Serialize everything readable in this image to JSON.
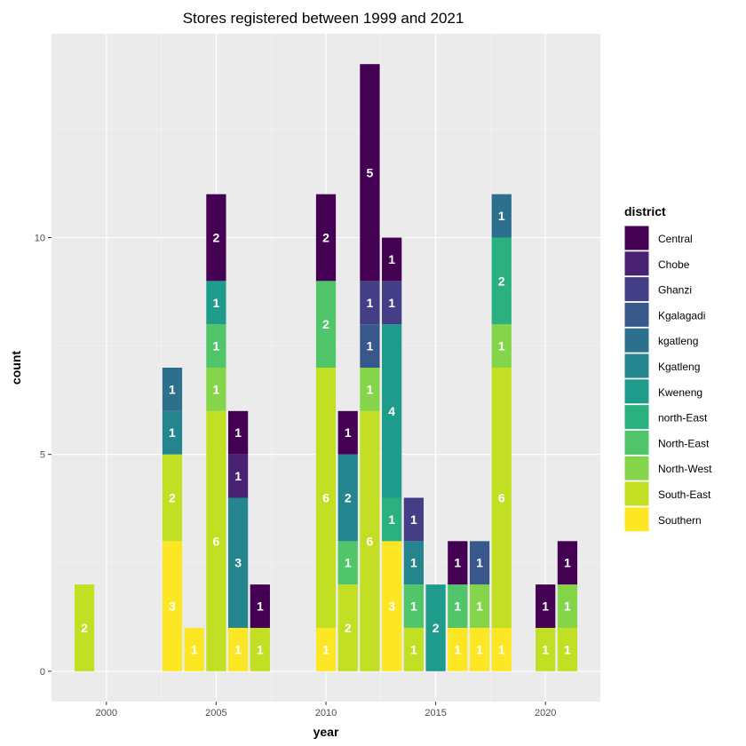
{
  "chart_data": {
    "type": "bar",
    "stacked": true,
    "title": "Stores registered between 1999 and 2021",
    "xlabel": "year",
    "ylabel": "count",
    "xlim": [
      1997.5,
      2022.5
    ],
    "ylim": [
      -0.7,
      14.7
    ],
    "x_ticks": [
      2000,
      2005,
      2010,
      2015,
      2020
    ],
    "y_ticks": [
      0,
      5,
      10
    ],
    "grid": true,
    "legend": {
      "title": "district",
      "position": "right",
      "entries": [
        {
          "name": "Central",
          "color": "#440154"
        },
        {
          "name": "Chobe",
          "color": "#482173"
        },
        {
          "name": "Ghanzi",
          "color": "#433E85"
        },
        {
          "name": "Kgalagadi",
          "color": "#38588C"
        },
        {
          "name": "kgatleng",
          "color": "#2D708E"
        },
        {
          "name": "Kgatleng",
          "color": "#25858E"
        },
        {
          "name": "Kweneng",
          "color": "#1E9B8A"
        },
        {
          "name": "north-East",
          "color": "#2BB07F"
        },
        {
          "name": "North-East",
          "color": "#51C56A"
        },
        {
          "name": "North-West",
          "color": "#85D54A"
        },
        {
          "name": "South-East",
          "color": "#C2DF23"
        },
        {
          "name": "Southern",
          "color": "#FDE725"
        }
      ]
    },
    "stack_order": [
      "Southern",
      "South-East",
      "North-West",
      "North-East",
      "north-East",
      "Kweneng",
      "Kgatleng",
      "kgatleng",
      "Kgalagadi",
      "Ghanzi",
      "Chobe",
      "Central"
    ],
    "data": [
      {
        "year": 1999,
        "counts": {
          "South-East": 2
        }
      },
      {
        "year": 2003,
        "counts": {
          "Southern": 3,
          "South-East": 2,
          "Kgatleng": 1,
          "kgatleng": 1
        }
      },
      {
        "year": 2004,
        "counts": {
          "Southern": 1
        }
      },
      {
        "year": 2005,
        "counts": {
          "South-East": 6,
          "North-West": 1,
          "North-East": 1,
          "Kweneng": 1,
          "Central": 2
        }
      },
      {
        "year": 2006,
        "counts": {
          "Southern": 1,
          "Kgatleng": 3,
          "Chobe": 1,
          "Central": 1
        }
      },
      {
        "year": 2007,
        "counts": {
          "South-East": 1,
          "Central": 1
        }
      },
      {
        "year": 2010,
        "counts": {
          "Southern": 1,
          "South-East": 6,
          "North-East": 2,
          "Central": 2
        }
      },
      {
        "year": 2011,
        "counts": {
          "South-East": 2,
          "North-East": 1,
          "Kgatleng": 2,
          "Central": 1
        }
      },
      {
        "year": 2012,
        "counts": {
          "South-East": 6,
          "North-West": 1,
          "Kgalagadi": 1,
          "Ghanzi": 1,
          "Central": 5
        }
      },
      {
        "year": 2013,
        "counts": {
          "Southern": 3,
          "north-East": 1,
          "Kweneng": 4,
          "Ghanzi": 1,
          "Central": 1
        }
      },
      {
        "year": 2014,
        "counts": {
          "South-East": 1,
          "North-East": 1,
          "Kgatleng": 1,
          "Ghanzi": 1
        }
      },
      {
        "year": 2015,
        "counts": {
          "Kweneng": 2
        }
      },
      {
        "year": 2016,
        "counts": {
          "Southern": 1,
          "North-East": 1,
          "Central": 1
        }
      },
      {
        "year": 2017,
        "counts": {
          "Southern": 1,
          "North-West": 1,
          "Kgalagadi": 1
        }
      },
      {
        "year": 2018,
        "counts": {
          "Southern": 1,
          "South-East": 6,
          "North-West": 1,
          "north-East": 2,
          "kgatleng": 1
        }
      },
      {
        "year": 2020,
        "counts": {
          "South-East": 1,
          "Central": 1
        }
      },
      {
        "year": 2021,
        "counts": {
          "South-East": 1,
          "North-West": 1,
          "Central": 1
        }
      }
    ]
  }
}
